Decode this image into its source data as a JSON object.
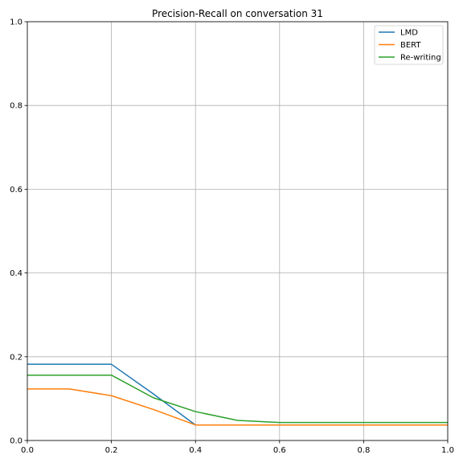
{
  "chart_data": {
    "type": "line",
    "title": "Precision-Recall on conversation 31",
    "xlabel": "",
    "ylabel": "",
    "xlim": [
      0,
      1
    ],
    "ylim": [
      0,
      1
    ],
    "xticks": [
      0.0,
      0.2,
      0.4,
      0.6,
      0.8,
      1.0
    ],
    "yticks": [
      0.0,
      0.2,
      0.4,
      0.6,
      0.8,
      1.0
    ],
    "xtick_labels": [
      "0.0",
      "0.2",
      "0.4",
      "0.6",
      "0.8",
      "1.0"
    ],
    "ytick_labels": [
      "0.0",
      "0.2",
      "0.4",
      "0.6",
      "0.8",
      "1.0"
    ],
    "grid": true,
    "legend_position": "top-right",
    "series": [
      {
        "name": "LMD",
        "color": "#1f77b4",
        "x": [
          0.0,
          0.1,
          0.2,
          0.3,
          0.4,
          0.5,
          0.6,
          0.7,
          0.8,
          0.9,
          1.0
        ],
        "y": [
          0.182,
          0.182,
          0.182,
          0.111,
          0.037,
          0.037,
          0.037,
          0.037,
          0.037,
          0.037,
          0.037
        ]
      },
      {
        "name": "BERT",
        "color": "#ff7f0e",
        "x": [
          0.0,
          0.1,
          0.2,
          0.3,
          0.4,
          0.5,
          0.6,
          0.7,
          0.8,
          0.9,
          1.0
        ],
        "y": [
          0.123,
          0.123,
          0.107,
          0.074,
          0.037,
          0.037,
          0.037,
          0.037,
          0.037,
          0.037,
          0.037
        ]
      },
      {
        "name": "Re-writing",
        "color": "#2ca02c",
        "x": [
          0.0,
          0.1,
          0.2,
          0.3,
          0.4,
          0.5,
          0.6,
          0.7,
          0.8,
          0.9,
          1.0
        ],
        "y": [
          0.156,
          0.156,
          0.156,
          0.102,
          0.069,
          0.048,
          0.043,
          0.043,
          0.043,
          0.043,
          0.043
        ]
      }
    ]
  }
}
